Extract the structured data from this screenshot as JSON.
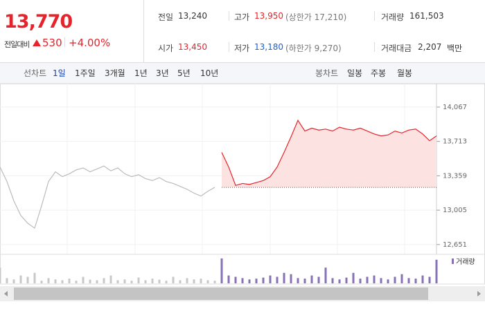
{
  "header": {
    "price": "13,770",
    "change_label": "전일대비",
    "change": "530",
    "change_rate": "+4.00%"
  },
  "info": [
    {
      "label": "전일",
      "value": "13,240"
    },
    {
      "label": "고가",
      "value": "13,950",
      "note": "(상한가 17,210)"
    },
    {
      "label": "거래량",
      "value": "161,503"
    },
    {
      "label": "시가",
      "value": "13,450"
    },
    {
      "label": "저가",
      "value": "13,180",
      "note": "(하한가 9,270)"
    },
    {
      "label": "거래대금",
      "value": "2,207",
      "unit": "백만"
    }
  ],
  "toolbar": {
    "line_label": "선차트",
    "line_periods": [
      "1일",
      "1주일",
      "3개월",
      "1년",
      "3년",
      "5년",
      "10년"
    ],
    "candle_label": "봉차트",
    "candle_periods": [
      "일봉",
      "주봉",
      "월봉"
    ]
  },
  "chart_data": {
    "type": "line",
    "ylim": [
      12550,
      14280
    ],
    "yticks": [
      {
        "value": 14067,
        "label": "14,067"
      },
      {
        "value": 13713,
        "label": "13,713"
      },
      {
        "value": 13359,
        "label": "13,359"
      },
      {
        "value": 13005,
        "label": "13,005"
      },
      {
        "value": 12651,
        "label": "12,651"
      }
    ],
    "grid": true,
    "reference": 13240,
    "fill_color": "#fde2e2",
    "series": [
      {
        "color": "#bbbbbb",
        "values": [
          13450,
          13300,
          13100,
          12950,
          12870,
          12820,
          13050,
          13300,
          13400,
          13350,
          13380,
          13420,
          13440,
          13400,
          13430,
          13460,
          13410,
          13440,
          13380,
          13350,
          13370,
          13330,
          13310,
          13340,
          13300,
          13280,
          13250,
          13220,
          13180,
          13150,
          13200,
          13240,
          null,
          null,
          null,
          null,
          null,
          null,
          null,
          null,
          null,
          null,
          null,
          null,
          null,
          null,
          null,
          null,
          null,
          null,
          null,
          null,
          null,
          null,
          null,
          null,
          null,
          null,
          null,
          null,
          null,
          null,
          null,
          null
        ]
      },
      {
        "color": "#e8222a",
        "values": [
          null,
          null,
          null,
          null,
          null,
          null,
          null,
          null,
          null,
          null,
          null,
          null,
          null,
          null,
          null,
          null,
          null,
          null,
          null,
          null,
          null,
          null,
          null,
          null,
          null,
          null,
          null,
          null,
          null,
          null,
          null,
          null,
          13600,
          13450,
          13260,
          13280,
          13270,
          13290,
          13310,
          13350,
          13450,
          13600,
          13760,
          13930,
          13820,
          13850,
          13830,
          13840,
          13820,
          13860,
          13840,
          13830,
          13850,
          13820,
          13790,
          13770,
          13780,
          13820,
          13800,
          13830,
          13840,
          13790,
          13720,
          13770
        ]
      }
    ],
    "volume": {
      "name": "거래량",
      "color": "#8672b4",
      "prev_color": "#c8c8c8",
      "y2lim": [
        0,
        100
      ],
      "values": [
        60,
        20,
        15,
        30,
        25,
        40,
        10,
        20,
        15,
        12,
        18,
        10,
        25,
        14,
        12,
        20,
        30,
        12,
        15,
        10,
        22,
        12,
        18,
        14,
        10,
        25,
        12,
        20,
        15,
        18,
        12,
        10,
        95,
        30,
        25,
        20,
        15,
        18,
        22,
        30,
        25,
        40,
        35,
        20,
        18,
        30,
        25,
        60,
        20,
        15,
        22,
        40,
        18,
        25,
        30,
        20,
        15,
        25,
        35,
        20,
        18,
        30,
        25,
        90
      ]
    }
  }
}
